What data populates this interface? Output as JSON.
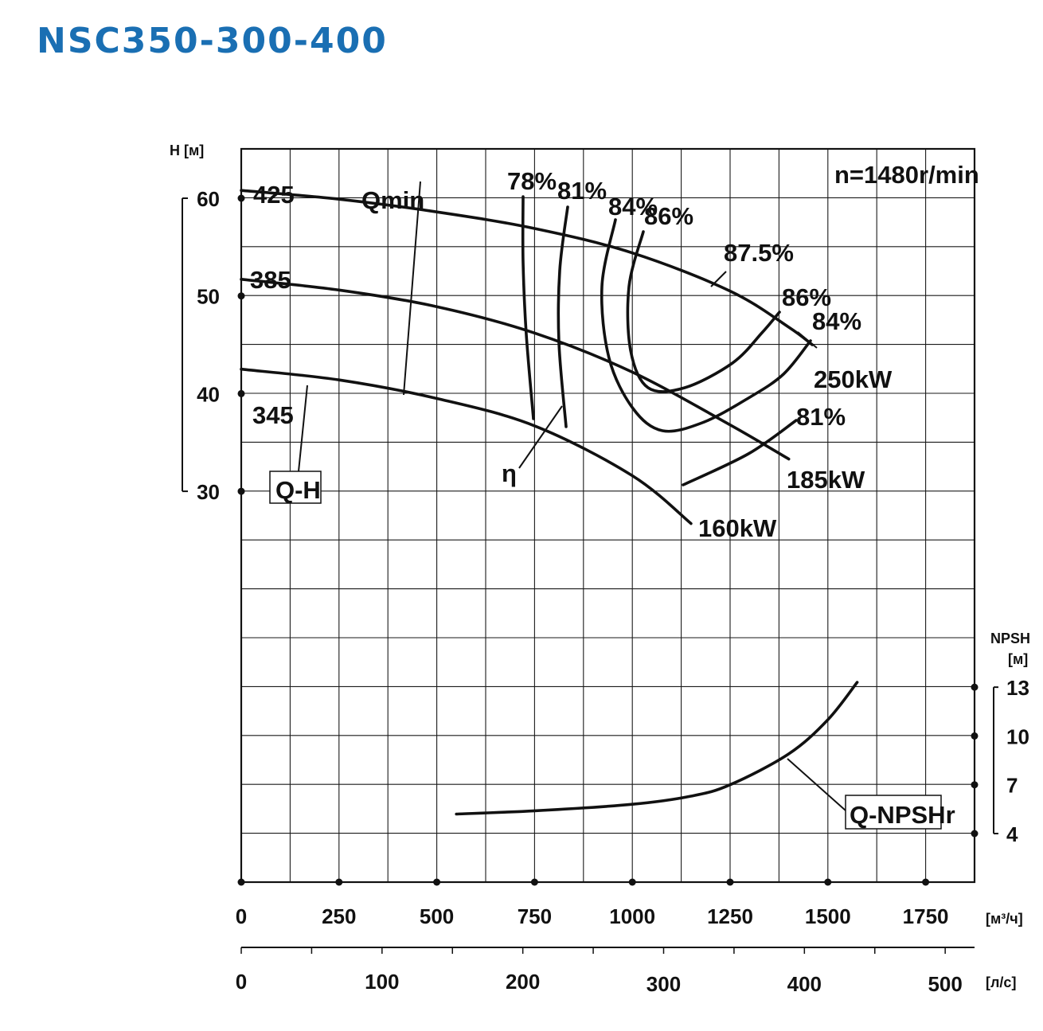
{
  "title": "NSC350-300-400",
  "chart_data": {
    "type": "line",
    "speed_label": "n=1480r/min",
    "x_axis": {
      "unit": "[м³/ч]",
      "ticks": [
        0,
        250,
        500,
        750,
        1000,
        1250,
        1500,
        1750
      ],
      "range": [
        0,
        1875
      ]
    },
    "x2_axis": {
      "unit": "[л/с]",
      "ticks": [
        0,
        100,
        200,
        300,
        400,
        500
      ]
    },
    "y_axis": {
      "label": "H [м]",
      "ticks": [
        30,
        40,
        50,
        60
      ],
      "range": [
        5,
        65
      ]
    },
    "y2_axis": {
      "label_line1": "NPSH",
      "label_line2": "[м]",
      "ticks": [
        4,
        7,
        10,
        13
      ]
    },
    "grid": true,
    "series": [
      {
        "name": "425",
        "type": "head",
        "x": [
          0,
          250,
          500,
          750,
          1000,
          1250,
          1400,
          1460
        ],
        "y": [
          60.8,
          59.9,
          58.6,
          56.9,
          54.4,
          50.5,
          46.8,
          45.0
        ]
      },
      {
        "name": "385",
        "type": "head",
        "x": [
          0,
          250,
          500,
          750,
          1000,
          1250,
          1400
        ],
        "y": [
          51.7,
          50.6,
          48.9,
          46.2,
          42.2,
          36.8,
          33.3
        ]
      },
      {
        "name": "345",
        "type": "head",
        "x": [
          0,
          250,
          500,
          750,
          1000,
          1150
        ],
        "y": [
          42.5,
          41.4,
          39.5,
          36.7,
          31.6,
          26.7
        ]
      },
      {
        "name": "Q-NPSHr",
        "type": "npsh",
        "x": [
          550,
          750,
          1000,
          1150,
          1250,
          1400,
          1500,
          1575
        ],
        "y": [
          5.2,
          5.4,
          5.8,
          6.3,
          7.0,
          8.9,
          11.0,
          13.3
        ]
      }
    ],
    "efficiency_labels": [
      "78%",
      "81%",
      "84%",
      "86%",
      "87.5%",
      "86%",
      "84%",
      "81%"
    ],
    "power_labels": [
      "250kW",
      "185kW",
      "160kW"
    ],
    "annotations": [
      "Qmin",
      "η",
      "Q-H",
      "Q-NPSHr"
    ]
  }
}
